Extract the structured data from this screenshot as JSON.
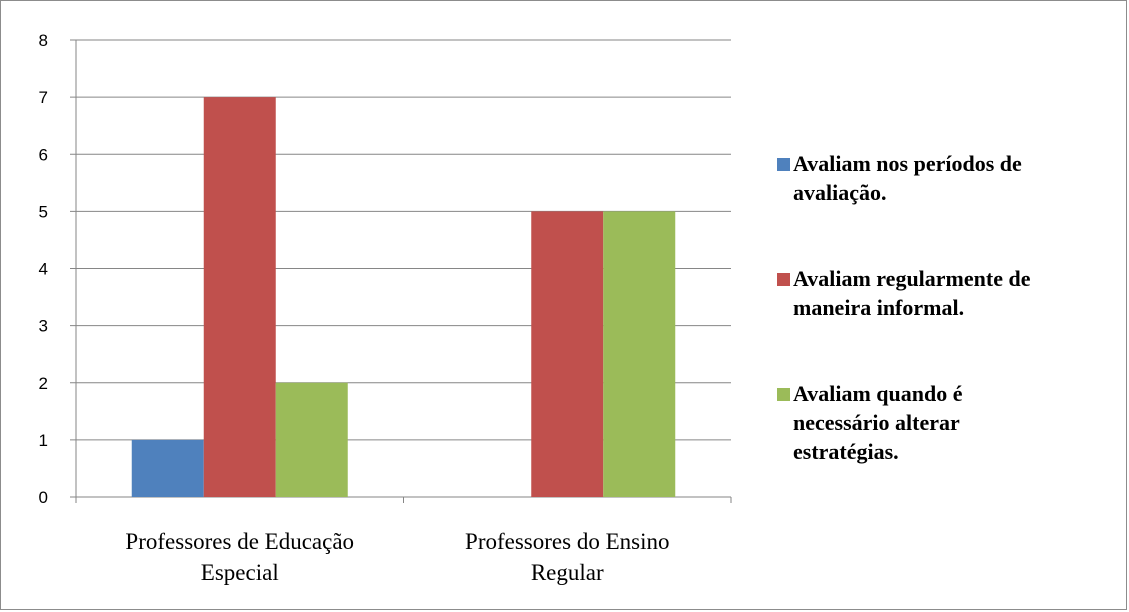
{
  "chart_data": {
    "type": "bar",
    "categories": [
      "Professores de Educação Especial",
      "Professores do Ensino Regular"
    ],
    "category_label_lines": [
      [
        "Professores de Educação",
        "Especial"
      ],
      [
        "Professores do Ensino",
        "Regular"
      ]
    ],
    "series": [
      {
        "name": "Avaliam nos períodos de avaliação.",
        "name_lines": [
          "Avaliam nos períodos de",
          "avaliação."
        ],
        "color": "#4f81bd",
        "values": [
          1,
          0
        ]
      },
      {
        "name": "Avaliam regularmente de maneira informal.",
        "name_lines": [
          "Avaliam regularmente de",
          "maneira informal."
        ],
        "color": "#c0504d",
        "values": [
          7,
          5
        ]
      },
      {
        "name": "Avaliam quando é necessário alterar estratégias.",
        "name_lines": [
          "Avaliam quando é",
          "necessário alterar",
          "estratégias."
        ],
        "color": "#9bbb59",
        "values": [
          2,
          5
        ]
      }
    ],
    "ylim": [
      0,
      8
    ],
    "yticks": [
      0,
      1,
      2,
      3,
      4,
      5,
      6,
      7,
      8
    ],
    "grid": true,
    "legend_position": "right",
    "title": "",
    "xlabel": "",
    "ylabel": ""
  }
}
